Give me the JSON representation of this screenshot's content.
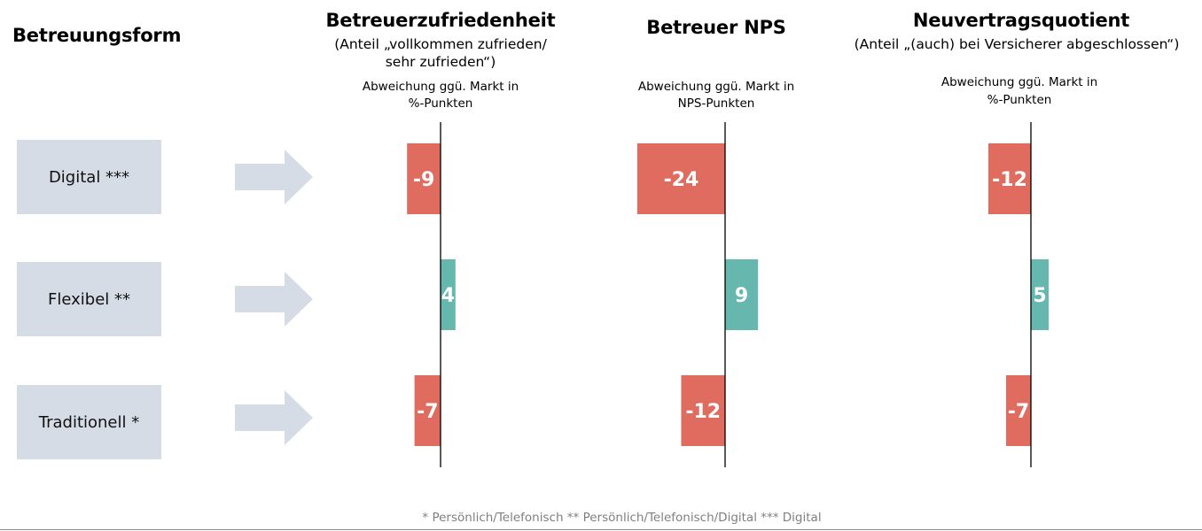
{
  "left_header": "Betreuungsform",
  "categories": [
    "Digital ***",
    "Flexibel **",
    "Traditionell *"
  ],
  "footnote": "* Persönlich/Telefonisch ** Persönlich/Telefonisch/Digital *** Digital",
  "colors": {
    "negative": "#e06b5f",
    "positive": "#66b7ad",
    "category_box": "#d6dce5",
    "arrow": "#d6dce5"
  },
  "chart_data": [
    {
      "type": "bar",
      "orientation": "horizontal",
      "title": "Betreuerzufriedenheit",
      "subtitle_lines": [
        "(Anteil „vollkommen zufrieden/",
        "sehr zufrieden“)"
      ],
      "unit_lines": [
        "Abweichung ggü. Markt in",
        "%-Punkten"
      ],
      "categories": [
        "Digital ***",
        "Flexibel **",
        "Traditionell *"
      ],
      "values": [
        -9,
        4,
        -7
      ],
      "labels": [
        "-9",
        "4",
        "-7"
      ]
    },
    {
      "type": "bar",
      "orientation": "horizontal",
      "title": "Betreuer NPS",
      "subtitle_lines": [],
      "unit_lines": [
        "Abweichung ggü. Markt in",
        "NPS-Punkten"
      ],
      "categories": [
        "Digital ***",
        "Flexibel **",
        "Traditionell *"
      ],
      "values": [
        -24,
        9,
        -12
      ],
      "labels": [
        "-24",
        "9",
        "-12"
      ]
    },
    {
      "type": "bar",
      "orientation": "horizontal",
      "title": "Neuvertragsquotient",
      "subtitle_lines": [
        "(Anteil „(auch) bei Versicherer abgeschlossen“)"
      ],
      "unit_lines": [
        "Abweichung ggü. Markt in",
        "%-Punkten"
      ],
      "categories": [
        "Digital ***",
        "Flexibel **",
        "Traditionell *"
      ],
      "values": [
        -12,
        5,
        -7
      ],
      "labels": [
        "-12",
        "5",
        "-7"
      ]
    }
  ]
}
